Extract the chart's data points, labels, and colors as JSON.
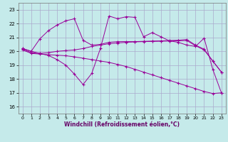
{
  "xlabel": "Windchill (Refroidissement éolien,°C)",
  "bg_color": "#c5eaea",
  "grid_color": "#aaaacc",
  "line_color": "#990099",
  "x_ticks": [
    0,
    1,
    2,
    3,
    4,
    5,
    6,
    7,
    8,
    9,
    10,
    11,
    12,
    13,
    14,
    15,
    16,
    17,
    18,
    19,
    20,
    21,
    22,
    23
  ],
  "y_ticks": [
    16,
    17,
    18,
    19,
    20,
    21,
    22,
    23
  ],
  "xlim": [
    -0.5,
    23.5
  ],
  "ylim": [
    15.5,
    23.5
  ],
  "series1_x": [
    0,
    1,
    2,
    3,
    4,
    5,
    6,
    7,
    8,
    9,
    10,
    11,
    12,
    13,
    14,
    15,
    16,
    17,
    18,
    19,
    20,
    21,
    22,
    23
  ],
  "series1_y": [
    20.2,
    20.0,
    20.9,
    21.5,
    21.9,
    22.2,
    22.35,
    20.8,
    20.45,
    20.5,
    20.65,
    20.7,
    20.7,
    20.7,
    20.72,
    20.74,
    20.75,
    20.78,
    20.8,
    20.85,
    20.45,
    20.15,
    19.3,
    18.5
  ],
  "series2_x": [
    0,
    1,
    2,
    3,
    4,
    5,
    6,
    7,
    8,
    9,
    10,
    11,
    12,
    13,
    14,
    15,
    16,
    17,
    18,
    19,
    20,
    21,
    22,
    23
  ],
  "series2_y": [
    20.2,
    20.0,
    19.85,
    19.7,
    19.4,
    19.0,
    18.35,
    17.6,
    18.4,
    20.2,
    22.55,
    22.35,
    22.5,
    22.45,
    21.05,
    21.35,
    21.05,
    20.75,
    20.65,
    20.45,
    20.35,
    20.95,
    18.7,
    17.0
  ],
  "series3_x": [
    0,
    1,
    2,
    3,
    4,
    5,
    6,
    7,
    8,
    9,
    10,
    11,
    12,
    13,
    14,
    15,
    16,
    17,
    18,
    19,
    20,
    21,
    22,
    23
  ],
  "series3_y": [
    20.15,
    19.9,
    19.85,
    19.9,
    20.0,
    20.05,
    20.1,
    20.2,
    20.35,
    20.45,
    20.55,
    20.6,
    20.65,
    20.68,
    20.7,
    20.71,
    20.73,
    20.74,
    20.76,
    20.78,
    20.4,
    20.1,
    19.3,
    18.5
  ],
  "series4_x": [
    0,
    1,
    2,
    3,
    4,
    5,
    6,
    7,
    8,
    9,
    10,
    11,
    12,
    13,
    14,
    15,
    16,
    17,
    18,
    19,
    20,
    21,
    22,
    23
  ],
  "series4_y": [
    20.1,
    19.85,
    19.8,
    19.75,
    19.72,
    19.68,
    19.6,
    19.5,
    19.4,
    19.3,
    19.2,
    19.05,
    18.9,
    18.7,
    18.5,
    18.3,
    18.1,
    17.9,
    17.7,
    17.5,
    17.3,
    17.1,
    16.95,
    17.0
  ]
}
